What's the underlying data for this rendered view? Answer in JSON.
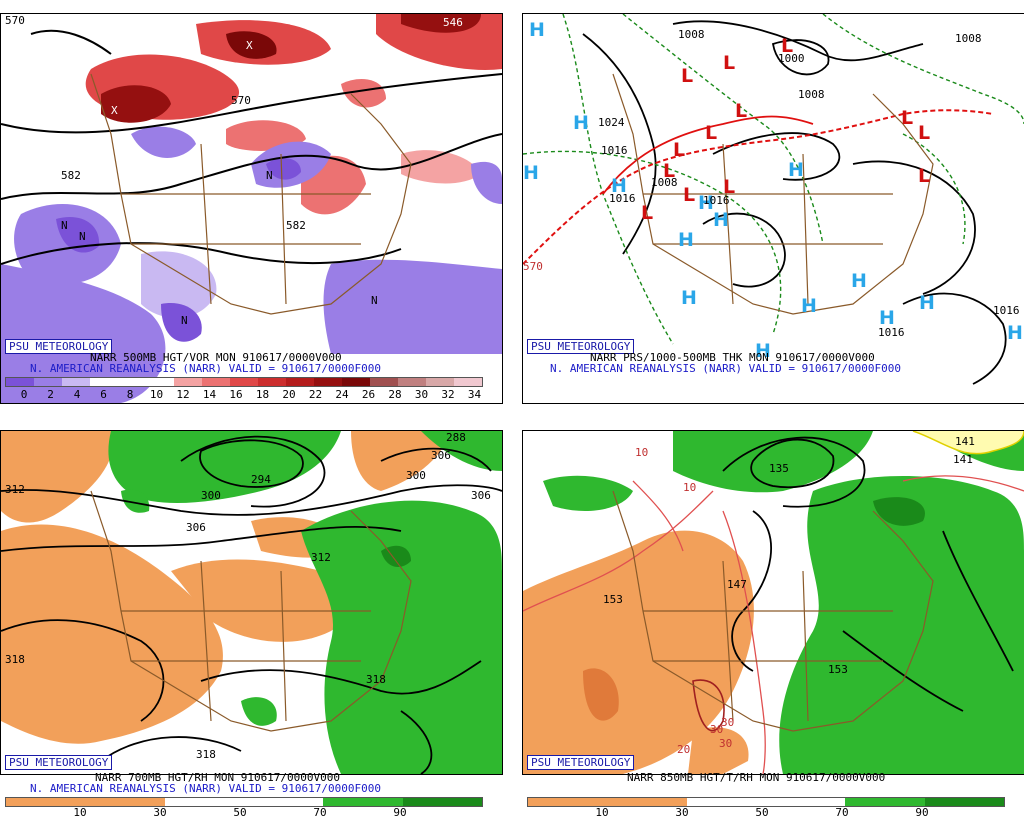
{
  "brand": "PSU METEOROLOGY",
  "panels": {
    "tl": {
      "line1": "NARR 500MB HGT/VOR MON 910617/0000V000",
      "line2": "N. AMERICAN REANALYSIS (NARR) VALID = 910617/0000F000",
      "colorbar": {
        "ticks": [
          "0",
          "2",
          "4",
          "6",
          "8",
          "10",
          "12",
          "14",
          "16",
          "18",
          "20",
          "22",
          "24",
          "26",
          "28",
          "30",
          "32",
          "34"
        ],
        "colors": [
          "#7b52d8",
          "#9a7ee6",
          "#c9b9f2",
          "#ffffff",
          "#ffffff",
          "#ffffff",
          "#f4a3a3",
          "#ec7272",
          "#e04848",
          "#cc2e2e",
          "#b41c1c",
          "#951010",
          "#7a0808",
          "#a05050",
          "#c08080",
          "#d8a8a8",
          "#f0c8d0"
        ]
      },
      "contour_labels": [
        "570",
        "546",
        "582",
        "570",
        "582"
      ],
      "marks": {
        "N": "N",
        "X": "X"
      }
    },
    "tr": {
      "line1": "NARR PRS/1000-500MB THK MON 910617/0000V000",
      "line2": "N. AMERICAN REANALYSIS (NARR) VALID = 910617/0000F000",
      "contour_labels": [
        "1008",
        "1000",
        "1008",
        "1008",
        "1024",
        "1016",
        "1016",
        "1008",
        "1016",
        "1016",
        "1016",
        "570"
      ],
      "high": "H",
      "low": "L"
    },
    "bl": {
      "line1": "NARR 700MB HGT/RH MON 910617/0000V000",
      "line2": "N. AMERICAN REANALYSIS (NARR) VALID = 910617/0000F000",
      "colorbar": {
        "ticks": [
          "10",
          "30",
          "50",
          "70",
          "90"
        ],
        "colors": [
          "#f2a05a",
          "#f2a05a",
          "#ffffff",
          "#ffffff",
          "#2fb82f",
          "#1a8a1a"
        ]
      },
      "contour_labels": [
        "312",
        "300",
        "294",
        "288",
        "306",
        "306",
        "312",
        "300",
        "306",
        "318",
        "318",
        "318"
      ]
    },
    "br": {
      "line1": "NARR 850MB HGT/T/RH MON 910617/0000V000",
      "colorbar": {
        "ticks": [
          "10",
          "30",
          "50",
          "70",
          "90"
        ],
        "colors": [
          "#f2a05a",
          "#f2a05a",
          "#ffffff",
          "#ffffff",
          "#2fb82f",
          "#1a8a1a"
        ]
      },
      "contour_labels": [
        "10",
        "10",
        "135",
        "141",
        "147",
        "153",
        "153",
        "30",
        "30",
        "30",
        "20",
        "141"
      ]
    }
  }
}
